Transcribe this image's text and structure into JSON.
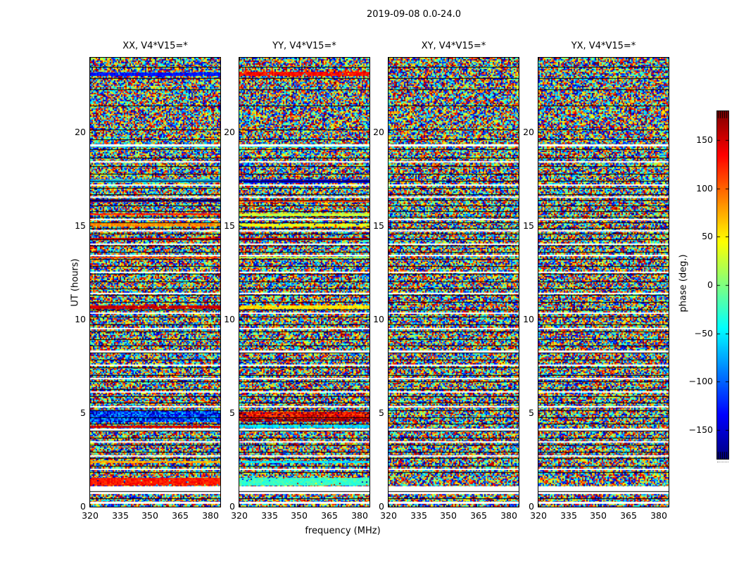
{
  "chart_data": {
    "type": "heatmap",
    "title": "2019-09-08 0.0-24.0",
    "xlabel": "frequency (MHz)",
    "ylabel": "UT (hours)",
    "x_range": [
      320,
      385
    ],
    "x_ticks": [
      320,
      335,
      350,
      365,
      380
    ],
    "y_range": [
      0,
      24
    ],
    "y_ticks": [
      0,
      5,
      10,
      15,
      20
    ],
    "value_range": [
      -180,
      180
    ],
    "colormap": "jet",
    "colorbar": {
      "label": "phase (deg.)",
      "ticks": [
        -150,
        -100,
        -50,
        0,
        50,
        100,
        150
      ]
    },
    "panels": [
      {
        "id": "XX",
        "title": "XX, V4*V15=*",
        "seed": 11,
        "bands": [
          {
            "ut": 23.15,
            "rows": 5,
            "phase": -130
          },
          {
            "ut": 19.28,
            "rows": 3,
            "phase": -55
          },
          {
            "ut": 17.4,
            "rows": 4,
            "phase": -70
          },
          {
            "ut": 16.35,
            "rows": 4,
            "phase": -172
          },
          {
            "ut": 15.65,
            "rows": 3,
            "phase": 118
          },
          {
            "ut": 15.08,
            "rows": 5,
            "phase": 85
          },
          {
            "ut": 14.35,
            "rows": 2,
            "phase": 152
          },
          {
            "ut": 13.3,
            "rows": 2,
            "phase": 112
          },
          {
            "ut": 10.7,
            "rows": 5,
            "phase": 155
          },
          {
            "ut": 4.3,
            "rows": 3,
            "phase": 150
          },
          {
            "ut": 2.4,
            "rows": 3,
            "phase": 75
          },
          {
            "ut": 1.35,
            "rows": 11,
            "phase": 128
          }
        ],
        "noise_bias": [
          {
            "ut": 4.8,
            "rows": 16,
            "phase": -115,
            "spread": 60
          }
        ]
      },
      {
        "id": "YY",
        "title": "YY, V4*V15=*",
        "seed": 22,
        "bands": [
          {
            "ut": 23.15,
            "rows": 6,
            "phase": 132
          },
          {
            "ut": 19.28,
            "rows": 3,
            "phase": -50
          },
          {
            "ut": 17.4,
            "rows": 5,
            "phase": -148
          },
          {
            "ut": 16.35,
            "rows": 3,
            "phase": 115
          },
          {
            "ut": 15.6,
            "rows": 4,
            "phase": 25
          },
          {
            "ut": 15.05,
            "rows": 4,
            "phase": 40
          },
          {
            "ut": 14.35,
            "rows": 2,
            "phase": 158
          },
          {
            "ut": 13.3,
            "rows": 2,
            "phase": 15
          },
          {
            "ut": 10.7,
            "rows": 5,
            "phase": 55
          },
          {
            "ut": 4.62,
            "rows": 4,
            "phase": 168
          },
          {
            "ut": 4.28,
            "rows": 4,
            "phase": -58
          },
          {
            "ut": 2.4,
            "rows": 3,
            "phase": -52
          },
          {
            "ut": 1.35,
            "rows": 11,
            "phase": -25
          }
        ],
        "noise_bias": [
          {
            "ut": 4.9,
            "rows": 10,
            "phase": 140,
            "spread": 45
          }
        ]
      },
      {
        "id": "XY",
        "title": "XY, V4*V15=*",
        "seed": 33,
        "bands": [],
        "noise_bias": []
      },
      {
        "id": "YX",
        "title": "YX, V4*V15=*",
        "seed": 44,
        "bands": [],
        "noise_bias": []
      }
    ],
    "scan_boundaries_ut": [
      23.5,
      22.9,
      22.3,
      21.45,
      20.15,
      19.62,
      19.1,
      18.66,
      18.22,
      17.8,
      17.42,
      17.05,
      16.72,
      16.42,
      16.1,
      15.8,
      15.5,
      15.2,
      14.9,
      14.6,
      14.28,
      13.95,
      13.6,
      13.25,
      12.85,
      12.45,
      12.05,
      11.68,
      11.32,
      10.95,
      10.55,
      10.15,
      9.75,
      9.35,
      8.95,
      8.6,
      8.22,
      7.85,
      7.45,
      7.05,
      6.68,
      6.3,
      5.92,
      5.55,
      5.15,
      4.78,
      4.45,
      4.05,
      3.68,
      3.3,
      2.95,
      2.58,
      2.2,
      1.85,
      0.83,
      0.45
    ],
    "gaps": [
      {
        "ut": 19.35,
        "rows": 3
      },
      {
        "ut": 18.42,
        "rows": 2
      },
      {
        "ut": 17.18,
        "rows": 2
      },
      {
        "ut": 16.55,
        "rows": 2
      },
      {
        "ut": 15.35,
        "rows": 2
      },
      {
        "ut": 14.75,
        "rows": 2
      },
      {
        "ut": 14.05,
        "rows": 2
      },
      {
        "ut": 13.42,
        "rows": 2
      },
      {
        "ut": 12.52,
        "rows": 2
      },
      {
        "ut": 11.38,
        "rows": 2
      },
      {
        "ut": 10.35,
        "rows": 2
      },
      {
        "ut": 9.5,
        "rows": 2
      },
      {
        "ut": 8.3,
        "rows": 3
      },
      {
        "ut": 7.55,
        "rows": 2
      },
      {
        "ut": 6.85,
        "rows": 2
      },
      {
        "ut": 6.12,
        "rows": 2
      },
      {
        "ut": 5.35,
        "rows": 2
      },
      {
        "ut": 4.15,
        "rows": 3
      },
      {
        "ut": 3.45,
        "rows": 2
      },
      {
        "ut": 2.72,
        "rows": 2
      },
      {
        "ut": 2.0,
        "rows": 2
      },
      {
        "ut": 0.9,
        "rows": 11
      },
      {
        "ut": 0.22,
        "rows": 3
      }
    ]
  }
}
